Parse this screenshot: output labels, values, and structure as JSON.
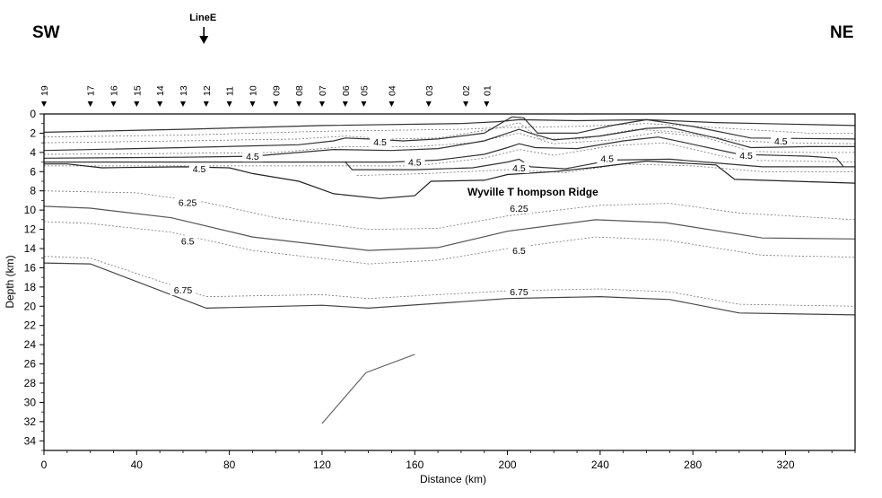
{
  "figure": {
    "left_direction": "SW",
    "right_direction": "NE",
    "marker_label": "LineE",
    "annotation": "Wyville T hompson  Ridge",
    "x_axis_label": "Distance (km)",
    "y_axis_label": "Depth (km)"
  },
  "chart_data": {
    "type": "line",
    "xlabel": "Distance (km)",
    "ylabel": "Depth (km)",
    "xlim": [
      0,
      350
    ],
    "ylim": [
      35,
      0
    ],
    "y_inverted": true,
    "grid": false,
    "x_ticks": [
      0,
      40,
      80,
      120,
      160,
      200,
      240,
      280,
      320
    ],
    "x_tick_labels": [
      "0",
      "40",
      "80",
      "120",
      "160",
      "200",
      "240",
      "280",
      "320"
    ],
    "y_ticks": [
      0,
      2,
      4,
      6,
      8,
      10,
      12,
      14,
      16,
      18,
      20,
      22,
      24,
      26,
      28,
      30,
      32,
      34
    ],
    "y_tick_labels": [
      "0",
      "2",
      "4",
      "6",
      "8",
      "10",
      "12",
      "14",
      "16",
      "18",
      "20",
      "22",
      "24",
      "26",
      "28",
      "30",
      "32",
      "34"
    ],
    "line_e_position_km": 69,
    "stations": [
      {
        "label": "19",
        "x": 0
      },
      {
        "label": "17",
        "x": 20
      },
      {
        "label": "16",
        "x": 30
      },
      {
        "label": "15",
        "x": 40
      },
      {
        "label": "14",
        "x": 50
      },
      {
        "label": "13",
        "x": 60
      },
      {
        "label": "12",
        "x": 70
      },
      {
        "label": "11",
        "x": 80
      },
      {
        "label": "10",
        "x": 90
      },
      {
        "label": "09",
        "x": 100
      },
      {
        "label": "08",
        "x": 110
      },
      {
        "label": "07",
        "x": 120
      },
      {
        "label": "06",
        "x": 130
      },
      {
        "label": "05",
        "x": 138
      },
      {
        "label": "04",
        "x": 150
      },
      {
        "label": "03",
        "x": 166
      },
      {
        "label": "02",
        "x": 182
      },
      {
        "label": "01",
        "x": 191
      }
    ],
    "boundaries": [
      {
        "color": "#333333",
        "points": [
          [
            0,
            1.9
          ],
          [
            60,
            1.6
          ],
          [
            120,
            1.2
          ],
          [
            180,
            1.0
          ],
          [
            196,
            0.8
          ],
          [
            205,
            0.6
          ],
          [
            230,
            0.7
          ],
          [
            260,
            0.6
          ],
          [
            290,
            0.9
          ],
          [
            350,
            1.2
          ]
        ]
      },
      {
        "color": "#333333",
        "points": [
          [
            0,
            3.8
          ],
          [
            60,
            3.5
          ],
          [
            110,
            3.2
          ],
          [
            125,
            2.8
          ],
          [
            130,
            2.5
          ],
          [
            140,
            2.6
          ],
          [
            155,
            2.8
          ],
          [
            170,
            2.6
          ],
          [
            190,
            2.0
          ],
          [
            197,
            1.0
          ],
          [
            202,
            0.3
          ],
          [
            207,
            0.4
          ],
          [
            213,
            2.0
          ],
          [
            230,
            2.0
          ],
          [
            245,
            1.2
          ],
          [
            260,
            0.6
          ],
          [
            280,
            1.3
          ],
          [
            305,
            2.5
          ],
          [
            350,
            2.6
          ]
        ]
      },
      {
        "color": "#333333",
        "points": [
          [
            0,
            4.6
          ],
          [
            60,
            4.5
          ],
          [
            90,
            4.4
          ],
          [
            110,
            4.0
          ],
          [
            125,
            3.7
          ],
          [
            150,
            3.8
          ],
          [
            170,
            3.6
          ],
          [
            190,
            2.8
          ],
          [
            200,
            2.0
          ],
          [
            205,
            1.6
          ],
          [
            210,
            2.0
          ],
          [
            220,
            2.7
          ],
          [
            240,
            2.3
          ],
          [
            260,
            1.5
          ],
          [
            270,
            1.4
          ],
          [
            290,
            2.5
          ],
          [
            305,
            3.5
          ],
          [
            330,
            3.4
          ],
          [
            350,
            3.4
          ]
        ]
      },
      {
        "color": "#333333",
        "points": [
          [
            0,
            5.0
          ],
          [
            60,
            5.0
          ],
          [
            100,
            5.0
          ],
          [
            130,
            5.0
          ],
          [
            150,
            5.0
          ],
          [
            170,
            4.8
          ],
          [
            190,
            4.2
          ],
          [
            200,
            3.5
          ],
          [
            205,
            3.1
          ],
          [
            212,
            3.5
          ],
          [
            230,
            3.6
          ],
          [
            250,
            2.8
          ],
          [
            265,
            2.4
          ],
          [
            275,
            2.9
          ],
          [
            300,
            4.2
          ],
          [
            330,
            4.4
          ],
          [
            342,
            4.6
          ],
          [
            345,
            5.5
          ],
          [
            350,
            5.5
          ]
        ]
      },
      {
        "color": "#333333",
        "points": [
          [
            130,
            5.0
          ],
          [
            133,
            5.8
          ],
          [
            160,
            5.8
          ],
          [
            185,
            5.6
          ],
          [
            200,
            5.0
          ],
          [
            205,
            4.7
          ],
          [
            210,
            5.5
          ],
          [
            225,
            5.7
          ],
          [
            245,
            4.8
          ],
          [
            270,
            4.7
          ],
          [
            290,
            5.1
          ],
          [
            310,
            5.5
          ],
          [
            345,
            5.5
          ]
        ]
      },
      {
        "color": "#222222",
        "points": [
          [
            0,
            5.2
          ],
          [
            10,
            5.2
          ],
          [
            25,
            5.6
          ],
          [
            60,
            5.5
          ],
          [
            80,
            5.6
          ],
          [
            90,
            6.2
          ],
          [
            110,
            7.0
          ],
          [
            125,
            8.3
          ],
          [
            145,
            8.8
          ],
          [
            160,
            8.5
          ],
          [
            167,
            7.0
          ],
          [
            190,
            6.9
          ],
          [
            200,
            6.3
          ],
          [
            220,
            6.0
          ],
          [
            240,
            5.5
          ],
          [
            260,
            4.9
          ],
          [
            290,
            5.3
          ],
          [
            298,
            6.8
          ],
          [
            350,
            7.2
          ]
        ]
      },
      {
        "color": "#555555",
        "points": [
          [
            0,
            9.6
          ],
          [
            20,
            9.8
          ],
          [
            55,
            10.8
          ],
          [
            90,
            12.8
          ],
          [
            140,
            14.2
          ],
          [
            170,
            13.9
          ],
          [
            200,
            12.2
          ],
          [
            238,
            11.0
          ],
          [
            268,
            11.3
          ],
          [
            310,
            12.9
          ],
          [
            350,
            13.0
          ]
        ]
      },
      {
        "color": "#444444",
        "points": [
          [
            0,
            15.5
          ],
          [
            20,
            15.6
          ],
          [
            70,
            20.2
          ],
          [
            120,
            19.9
          ],
          [
            140,
            20.2
          ],
          [
            200,
            19.2
          ],
          [
            240,
            19.0
          ],
          [
            270,
            19.3
          ],
          [
            300,
            20.7
          ],
          [
            350,
            20.9
          ]
        ]
      },
      {
        "color": "#666666",
        "points": [
          [
            120,
            32.2
          ],
          [
            139,
            26.9
          ],
          [
            160,
            25.0
          ]
        ]
      }
    ],
    "velocity_contours": [
      {
        "label": "4.5",
        "points": [
          [
            0,
            2.4
          ],
          [
            60,
            2.2
          ],
          [
            120,
            1.8
          ],
          [
            180,
            1.6
          ],
          [
            200,
            1.4
          ],
          [
            230,
            1.3
          ],
          [
            260,
            1.0
          ],
          [
            295,
            1.5
          ],
          [
            330,
            2.0
          ],
          [
            350,
            2.0
          ]
        ]
      },
      {
        "label": "4.5",
        "points": [
          [
            0,
            3.0
          ],
          [
            60,
            2.8
          ],
          [
            110,
            2.6
          ],
          [
            130,
            2.3
          ],
          [
            150,
            2.6
          ],
          [
            170,
            2.5
          ],
          [
            195,
            1.5
          ],
          [
            205,
            0.9
          ],
          [
            214,
            2.6
          ],
          [
            232,
            2.6
          ],
          [
            255,
            1.6
          ],
          [
            275,
            1.9
          ],
          [
            300,
            2.8
          ],
          [
            320,
            3.0
          ],
          [
            350,
            3.1
          ]
        ]
      },
      {
        "label": "4.5",
        "points": [
          [
            0,
            4.2
          ],
          [
            60,
            4.1
          ],
          [
            100,
            4.0
          ],
          [
            130,
            3.4
          ],
          [
            160,
            3.4
          ],
          [
            185,
            3.0
          ],
          [
            205,
            2.0
          ],
          [
            220,
            3.1
          ],
          [
            245,
            2.7
          ],
          [
            265,
            1.9
          ],
          [
            285,
            2.4
          ],
          [
            305,
            3.9
          ],
          [
            330,
            4.0
          ],
          [
            350,
            4.0
          ]
        ]
      },
      {
        "label": "4.5",
        "points": [
          [
            0,
            5.4
          ],
          [
            40,
            5.4
          ],
          [
            85,
            5.4
          ],
          [
            120,
            5.4
          ],
          [
            160,
            5.4
          ],
          [
            190,
            4.6
          ],
          [
            205,
            3.7
          ],
          [
            220,
            4.3
          ],
          [
            245,
            3.3
          ],
          [
            268,
            3.0
          ],
          [
            300,
            4.8
          ],
          [
            350,
            5.0
          ]
        ]
      },
      {
        "label": "4.5",
        "points": [
          [
            135,
            6.4
          ],
          [
            165,
            6.2
          ],
          [
            200,
            5.8
          ],
          [
            225,
            6.1
          ],
          [
            250,
            5.2
          ],
          [
            280,
            5.4
          ],
          [
            310,
            6.0
          ],
          [
            350,
            6.0
          ]
        ]
      },
      {
        "label": "6.25",
        "points": [
          [
            0,
            8.0
          ],
          [
            40,
            8.2
          ],
          [
            70,
            9.2
          ],
          [
            100,
            10.8
          ],
          [
            140,
            12.0
          ],
          [
            170,
            11.9
          ],
          [
            200,
            10.6
          ],
          [
            240,
            9.5
          ],
          [
            270,
            9.3
          ],
          [
            300,
            10.3
          ],
          [
            350,
            11.0
          ]
        ]
      },
      {
        "label": "6.5",
        "points": [
          [
            0,
            11.2
          ],
          [
            20,
            11.4
          ],
          [
            55,
            12.3
          ],
          [
            90,
            14.2
          ],
          [
            140,
            15.6
          ],
          [
            170,
            15.2
          ],
          [
            200,
            14.0
          ],
          [
            238,
            12.8
          ],
          [
            268,
            13.1
          ],
          [
            310,
            14.7
          ],
          [
            350,
            14.9
          ]
        ]
      },
      {
        "label": "6.75",
        "points": [
          [
            0,
            14.8
          ],
          [
            20,
            15.0
          ],
          [
            70,
            19.0
          ],
          [
            120,
            18.8
          ],
          [
            140,
            19.2
          ],
          [
            200,
            18.4
          ],
          [
            240,
            18.2
          ],
          [
            270,
            18.5
          ],
          [
            300,
            19.8
          ],
          [
            350,
            20.0
          ]
        ]
      }
    ],
    "contour_labels": [
      {
        "text": "4.5",
        "x": 145,
        "y": 2.9
      },
      {
        "text": "4.5",
        "x": 90,
        "y": 4.4
      },
      {
        "text": "4.5",
        "x": 160,
        "y": 5.0
      },
      {
        "text": "4.5",
        "x": 67,
        "y": 5.7
      },
      {
        "text": "4.5",
        "x": 205,
        "y": 5.6
      },
      {
        "text": "4.5",
        "x": 243,
        "y": 4.6
      },
      {
        "text": "4.5",
        "x": 318,
        "y": 2.8
      },
      {
        "text": "4.5",
        "x": 303,
        "y": 4.3
      },
      {
        "text": "6.25",
        "x": 62,
        "y": 9.2
      },
      {
        "text": "6.25",
        "x": 205,
        "y": 9.8
      },
      {
        "text": "6.5",
        "x": 62,
        "y": 13.2
      },
      {
        "text": "6.5",
        "x": 205,
        "y": 14.2
      },
      {
        "text": "6.75",
        "x": 60,
        "y": 18.3
      },
      {
        "text": "6.75",
        "x": 205,
        "y": 18.5
      }
    ]
  }
}
